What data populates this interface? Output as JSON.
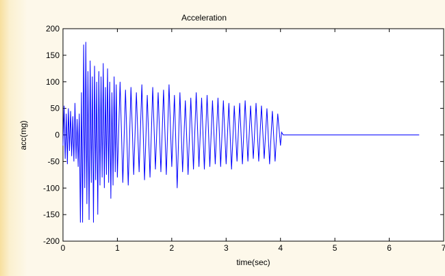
{
  "chart_data": {
    "type": "line",
    "title": "Acceleration",
    "xlabel": "time(sec)",
    "ylabel": "acc(mg)",
    "xlim": [
      0,
      7
    ],
    "ylim": [
      -200,
      200
    ],
    "xticks": [
      0,
      1,
      2,
      3,
      4,
      5,
      6,
      7
    ],
    "yticks": [
      200,
      150,
      100,
      50,
      0,
      -50,
      -100,
      -150,
      -200
    ],
    "grid": false,
    "legend": "none",
    "series_color": "#0000ff",
    "series": [
      {
        "x": [
          0.0,
          0.02,
          0.04,
          0.06,
          0.08,
          0.1,
          0.12,
          0.14,
          0.16,
          0.18,
          0.2,
          0.22,
          0.24,
          0.26,
          0.28,
          0.3,
          0.32,
          0.34,
          0.36,
          0.38,
          0.4,
          0.42,
          0.44,
          0.46,
          0.48,
          0.5,
          0.52,
          0.54,
          0.56,
          0.58,
          0.6,
          0.62,
          0.64,
          0.66,
          0.68,
          0.7,
          0.72,
          0.74,
          0.76,
          0.78,
          0.8,
          0.82,
          0.84,
          0.86,
          0.88,
          0.9,
          0.92,
          0.94,
          0.96,
          0.98,
          1.0,
          1.05,
          1.1,
          1.15,
          1.2,
          1.25,
          1.3,
          1.35,
          1.4,
          1.45,
          1.5,
          1.55,
          1.6,
          1.65,
          1.7,
          1.75,
          1.8,
          1.85,
          1.9,
          1.95,
          2.0,
          2.05,
          2.1,
          2.15,
          2.2,
          2.25,
          2.3,
          2.35,
          2.4,
          2.45,
          2.5,
          2.55,
          2.6,
          2.65,
          2.7,
          2.75,
          2.8,
          2.85,
          2.9,
          2.95,
          3.0,
          3.05,
          3.1,
          3.15,
          3.2,
          3.25,
          3.3,
          3.35,
          3.4,
          3.45,
          3.5,
          3.55,
          3.6,
          3.65,
          3.7,
          3.75,
          3.8,
          3.85,
          3.9,
          3.95,
          4.0,
          4.02,
          4.05,
          6.55
        ],
        "y": [
          -20,
          55,
          -45,
          40,
          -55,
          50,
          -30,
          45,
          -40,
          35,
          -50,
          60,
          -45,
          30,
          -60,
          40,
          -165,
          80,
          -165,
          170,
          -100,
          175,
          -130,
          120,
          -160,
          140,
          -90,
          110,
          -165,
          130,
          -85,
          100,
          -150,
          120,
          -95,
          110,
          -80,
          135,
          -100,
          90,
          -75,
          125,
          -90,
          100,
          -120,
          80,
          -95,
          110,
          -70,
          95,
          -80,
          100,
          -90,
          85,
          -95,
          90,
          -75,
          80,
          -70,
          95,
          -85,
          75,
          -80,
          90,
          -65,
          80,
          -70,
          85,
          -75,
          95,
          -60,
          75,
          -100,
          80,
          -70,
          65,
          -75,
          70,
          -65,
          80,
          -60,
          70,
          -65,
          75,
          -60,
          65,
          -55,
          70,
          -60,
          65,
          -55,
          60,
          -65,
          55,
          -50,
          60,
          -55,
          65,
          -50,
          55,
          -45,
          60,
          -50,
          55,
          -45,
          50,
          -55,
          45,
          -50,
          40,
          -20,
          5,
          0,
          0
        ]
      }
    ]
  }
}
